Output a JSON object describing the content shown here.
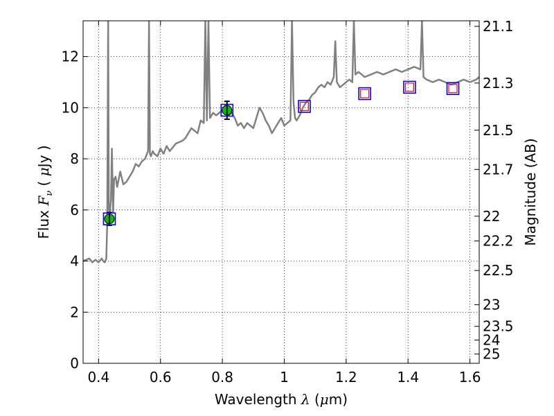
{
  "chart_data": {
    "type": "line",
    "xlabel": {
      "prefix": "Wavelength ",
      "symbol": "λ",
      "unit_open": " (",
      "unit_mu": "μ",
      "unit_rest": "m)"
    },
    "ylabel": {
      "prefix": "Flux ",
      "symbol": "F",
      "subscript": "ν",
      "unit_open": " ( ",
      "unit_mu": "μ",
      "unit_rest": "Jy )"
    },
    "y2label": "Magnitude (AB)",
    "xlim": [
      0.35,
      1.63
    ],
    "ylim": [
      0,
      13.4
    ],
    "grid": true,
    "x_ticks": [
      {
        "value": 0.4,
        "label": "0.4"
      },
      {
        "value": 0.6,
        "label": "0.6"
      },
      {
        "value": 0.8,
        "label": "0.8"
      },
      {
        "value": 1.0,
        "label": "1"
      },
      {
        "value": 1.2,
        "label": "1.2"
      },
      {
        "value": 1.4,
        "label": "1.4"
      },
      {
        "value": 1.6,
        "label": "1.6"
      }
    ],
    "y_ticks": [
      {
        "value": 0,
        "label": "0"
      },
      {
        "value": 2,
        "label": "2"
      },
      {
        "value": 4,
        "label": "4"
      },
      {
        "value": 6,
        "label": "6"
      },
      {
        "value": 8,
        "label": "8"
      },
      {
        "value": 10,
        "label": "10"
      },
      {
        "value": 12,
        "label": "12"
      }
    ],
    "y2_ticks": [
      {
        "mag": 21.1,
        "label": "21.1"
      },
      {
        "mag": 21.3,
        "label": "21.3"
      },
      {
        "mag": 21.5,
        "label": "21.5"
      },
      {
        "mag": 21.7,
        "label": "21.7"
      },
      {
        "mag": 22.0,
        "label": "22"
      },
      {
        "mag": 22.2,
        "label": "22.2"
      },
      {
        "mag": 22.5,
        "label": "22.5"
      },
      {
        "mag": 23.0,
        "label": "23"
      },
      {
        "mag": 23.5,
        "label": "23.5"
      },
      {
        "mag": 24.0,
        "label": "24"
      },
      {
        "mag": 25.0,
        "label": "25"
      }
    ],
    "series": [
      {
        "name": "",
        "type": "line",
        "color": "#808080",
        "x": [
          0.35,
          0.36,
          0.37,
          0.38,
          0.39,
          0.4,
          0.41,
          0.415,
          0.42,
          0.425,
          0.428,
          0.431,
          0.433,
          0.436,
          0.44,
          0.443,
          0.447,
          0.45,
          0.455,
          0.46,
          0.465,
          0.47,
          0.48,
          0.49,
          0.5,
          0.51,
          0.52,
          0.53,
          0.54,
          0.55,
          0.56,
          0.563,
          0.566,
          0.569,
          0.575,
          0.58,
          0.59,
          0.6,
          0.61,
          0.62,
          0.63,
          0.65,
          0.67,
          0.68,
          0.69,
          0.7,
          0.72,
          0.73,
          0.74,
          0.745,
          0.75,
          0.755,
          0.76,
          0.77,
          0.78,
          0.79,
          0.8,
          0.81,
          0.82,
          0.83,
          0.84,
          0.85,
          0.86,
          0.87,
          0.88,
          0.89,
          0.9,
          0.91,
          0.92,
          0.93,
          0.94,
          0.95,
          0.96,
          0.97,
          0.98,
          0.99,
          1.0,
          1.01,
          1.02,
          1.025,
          1.03,
          1.035,
          1.04,
          1.05,
          1.06,
          1.07,
          1.08,
          1.09,
          1.1,
          1.11,
          1.12,
          1.13,
          1.14,
          1.15,
          1.16,
          1.165,
          1.17,
          1.18,
          1.19,
          1.2,
          1.21,
          1.22,
          1.225,
          1.23,
          1.24,
          1.25,
          1.26,
          1.28,
          1.3,
          1.32,
          1.34,
          1.36,
          1.38,
          1.4,
          1.42,
          1.44,
          1.445,
          1.45,
          1.46,
          1.48,
          1.5,
          1.52,
          1.54,
          1.56,
          1.58,
          1.6,
          1.62,
          1.63
        ],
        "y": [
          4.0,
          4.05,
          4.1,
          3.95,
          4.05,
          3.95,
          4.1,
          4.0,
          3.95,
          4.1,
          5.5,
          13.4,
          6.2,
          5.8,
          6.4,
          8.4,
          5.9,
          7.2,
          7.3,
          6.9,
          7.2,
          7.5,
          7.0,
          7.1,
          7.3,
          7.5,
          7.8,
          7.7,
          7.9,
          8.0,
          8.3,
          13.4,
          8.2,
          8.1,
          8.3,
          8.2,
          8.1,
          8.4,
          8.2,
          8.5,
          8.3,
          8.6,
          8.7,
          8.8,
          9.0,
          9.2,
          9.0,
          9.5,
          9.4,
          13.4,
          9.5,
          13.4,
          9.6,
          9.8,
          9.7,
          9.8,
          9.9,
          10.1,
          9.7,
          9.8,
          9.6,
          9.3,
          9.4,
          9.2,
          9.4,
          9.3,
          9.2,
          9.6,
          10.0,
          9.8,
          9.5,
          9.3,
          9.0,
          9.2,
          9.4,
          9.6,
          9.3,
          9.4,
          9.5,
          13.4,
          10.2,
          9.6,
          9.5,
          9.7,
          10.0,
          10.2,
          10.3,
          10.5,
          10.6,
          10.8,
          10.9,
          10.8,
          11.0,
          10.9,
          11.2,
          12.6,
          11.0,
          10.8,
          10.9,
          11.0,
          11.1,
          11.0,
          13.4,
          11.3,
          11.4,
          11.3,
          11.2,
          11.3,
          11.4,
          11.3,
          11.4,
          11.5,
          11.4,
          11.5,
          11.6,
          11.5,
          13.4,
          11.2,
          11.1,
          11.0,
          11.1,
          11.0,
          10.9,
          11.0,
          11.1,
          11.0,
          11.1,
          11.2
        ]
      },
      {
        "name": "",
        "type": "scatter-filled",
        "color": "#00c000",
        "x": [
          0.435,
          0.815
        ],
        "y": [
          5.65,
          9.9
        ],
        "yerr": [
          0.25,
          0.35
        ]
      },
      {
        "name": "",
        "type": "scatter-open",
        "color": "#0000ff",
        "x": [
          0.435,
          0.815,
          1.065,
          1.26,
          1.405,
          1.545
        ],
        "y": [
          5.65,
          9.9,
          10.05,
          10.55,
          10.8,
          10.75
        ]
      },
      {
        "name": "",
        "type": "scatter-open-small",
        "color": "#ff0000",
        "x": [
          1.065,
          1.26,
          1.405,
          1.545
        ],
        "y": [
          10.05,
          10.55,
          10.8,
          10.75
        ]
      }
    ]
  }
}
